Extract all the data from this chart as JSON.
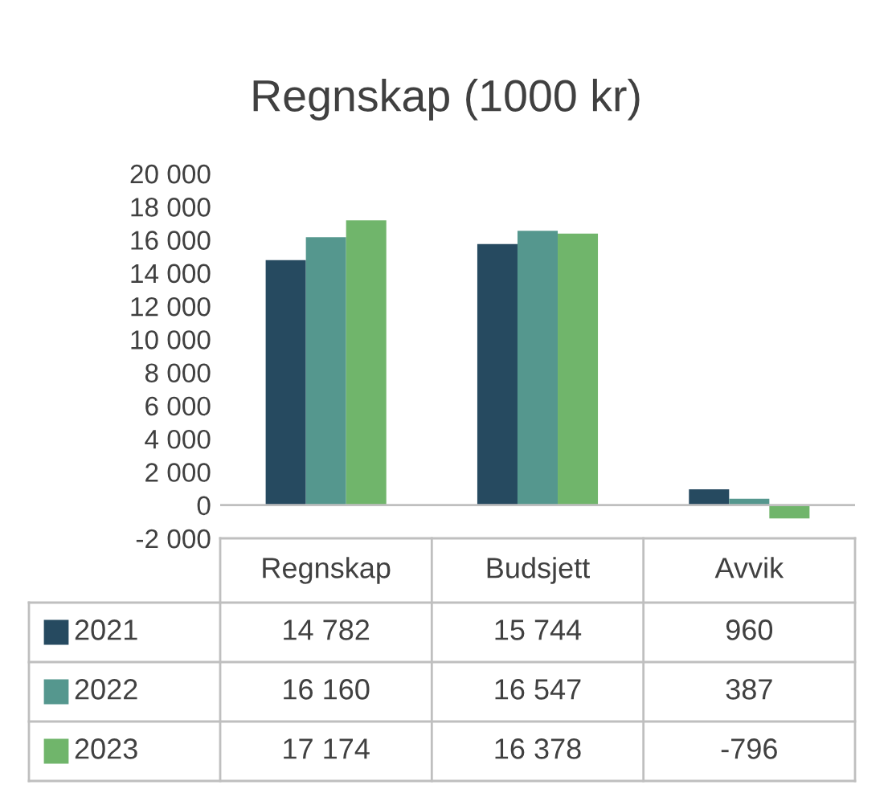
{
  "chart_data": {
    "type": "bar",
    "title": "Regnskap (1000 kr)",
    "categories": [
      "Regnskap",
      "Budsjett",
      "Avvik"
    ],
    "series": [
      {
        "name": "2021",
        "color": "#264a60",
        "values": [
          14782,
          15744,
          960
        ],
        "value_labels": [
          "14 782",
          "15 744",
          "960"
        ]
      },
      {
        "name": "2022",
        "color": "#55978e",
        "values": [
          16160,
          16547,
          387
        ],
        "value_labels": [
          "16 160",
          "16 547",
          "387"
        ]
      },
      {
        "name": "2023",
        "color": "#70b56b",
        "values": [
          17174,
          16378,
          -796
        ],
        "value_labels": [
          "17 174",
          "16 378",
          "-796"
        ]
      }
    ],
    "ylim": [
      -2000,
      20000
    ],
    "yticks": [
      {
        "value": -2000,
        "label": "-2 000"
      },
      0,
      {
        "value": 2000,
        "label": "2 000"
      },
      {
        "value": 4000,
        "label": "4 000"
      },
      {
        "value": 6000,
        "label": "6 000"
      },
      {
        "value": 8000,
        "label": "8 000"
      },
      {
        "value": 10000,
        "label": "10 000"
      },
      {
        "value": 12000,
        "label": "12 000"
      },
      {
        "value": 14000,
        "label": "14 000"
      },
      {
        "value": 16000,
        "label": "16 000"
      },
      {
        "value": 18000,
        "label": "18 000"
      },
      {
        "value": 20000,
        "label": "20 000"
      }
    ],
    "legend": "bottom"
  }
}
